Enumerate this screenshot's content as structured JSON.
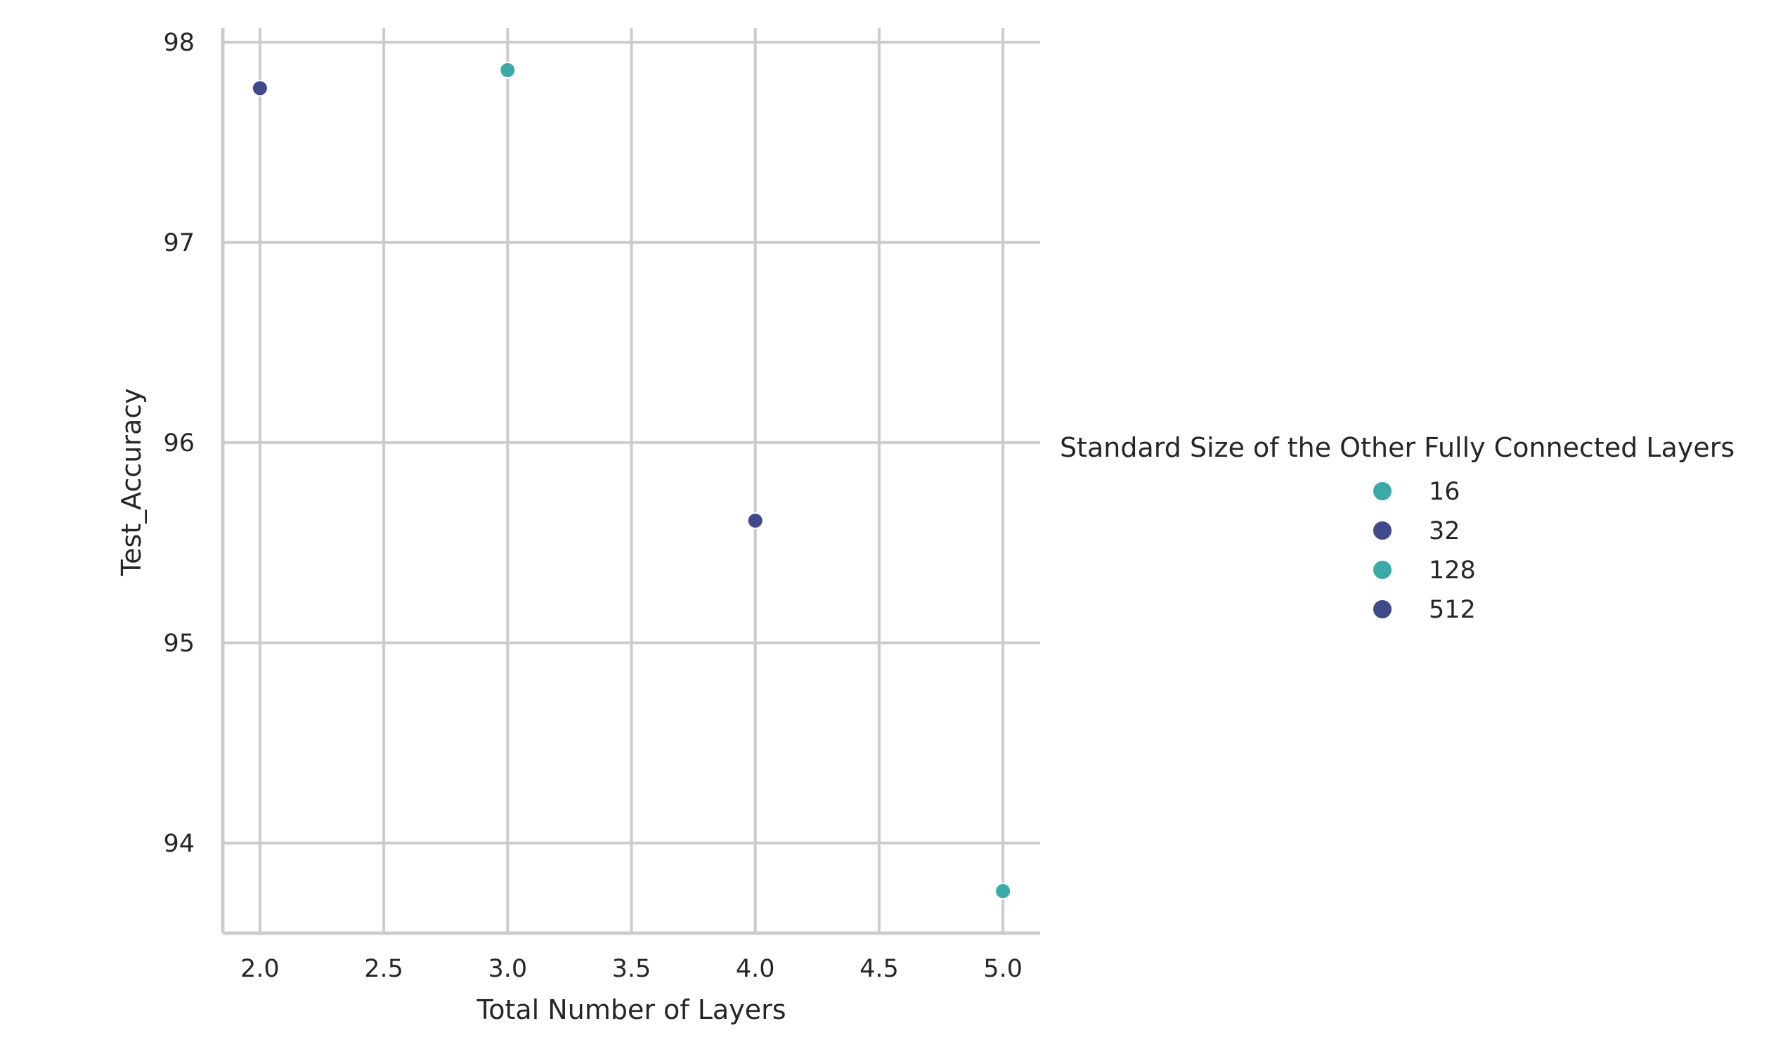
{
  "chart_data": {
    "type": "scatter",
    "title": "",
    "xlabel": "Total Number of Layers",
    "ylabel": "Test_Accuracy",
    "xlim": [
      1.85,
      5.15
    ],
    "ylim": [
      93.55,
      98.07
    ],
    "xticks": [
      2.0,
      2.5,
      3.0,
      3.5,
      4.0,
      4.5,
      5.0
    ],
    "xtick_labels": [
      "2.0",
      "2.5",
      "3.0",
      "3.5",
      "4.0",
      "4.5",
      "5.0"
    ],
    "yticks": [
      94,
      95,
      96,
      97,
      98
    ],
    "ytick_labels": [
      "94",
      "95",
      "96",
      "97",
      "98"
    ],
    "grid": true,
    "legend_position": "right",
    "legend_title": "Standard Size of the Other Fully Connected Layers",
    "colors": {
      "teal": "#3aaaa8",
      "navy": "#3e4a8a"
    },
    "series": [
      {
        "name": "16",
        "color": "#3aaaa8",
        "points": []
      },
      {
        "name": "32",
        "color": "#3e4a8a",
        "points": []
      },
      {
        "name": "128",
        "color": "#3aaaa8",
        "points": []
      },
      {
        "name": "512",
        "color": "#3e4a8a",
        "points": []
      }
    ],
    "points": [
      {
        "x": 2.0,
        "y": 97.77,
        "color": "#3e4a8a"
      },
      {
        "x": 3.0,
        "y": 97.86,
        "color": "#3aaaa8"
      },
      {
        "x": 4.0,
        "y": 95.61,
        "color": "#3e4a8a"
      },
      {
        "x": 5.0,
        "y": 93.76,
        "color": "#3aaaa8"
      }
    ]
  }
}
